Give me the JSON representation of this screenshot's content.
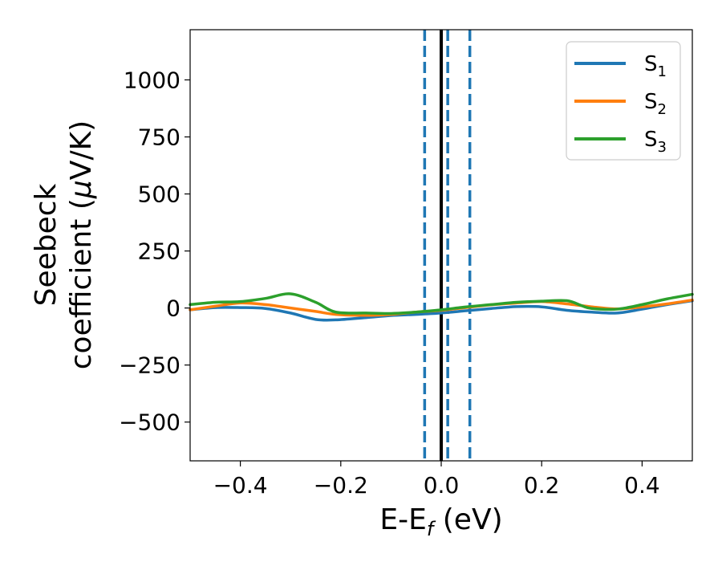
{
  "chart_data": {
    "type": "line",
    "xlabel": {
      "main": "E-E",
      "sub": "f",
      "units": " (eV)"
    },
    "ylabel": {
      "line1": "Seebeck",
      "line2": "coefficient  (",
      "mu": "μ",
      "unit": "V/K)"
    },
    "xlim": [
      -0.5,
      0.5
    ],
    "ylim": [
      -670,
      1220
    ],
    "x_ticks": [
      -0.4,
      -0.2,
      0.0,
      0.2,
      0.4
    ],
    "x_tick_labels": [
      "−0.4",
      "−0.2",
      "0.0",
      "0.2",
      "0.4"
    ],
    "y_ticks": [
      -500,
      -250,
      0,
      250,
      500,
      750,
      1000
    ],
    "y_tick_labels": [
      "−500",
      "−250",
      "0",
      "250",
      "500",
      "750",
      "1000"
    ],
    "grid": false,
    "legend_position": "top-right",
    "series": [
      {
        "name": "S",
        "name_sub": "1",
        "color": "#1f77b4",
        "x": [
          -0.5,
          -0.45,
          -0.4,
          -0.35,
          -0.3,
          -0.25,
          -0.21,
          -0.15,
          -0.1,
          -0.05,
          0.0,
          0.05,
          0.1,
          0.15,
          0.2,
          0.25,
          0.3,
          0.35,
          0.4,
          0.45,
          0.5
        ],
        "y": [
          -8,
          2,
          2,
          -2,
          -22,
          -50,
          -52,
          -42,
          -33,
          -28,
          -22,
          -12,
          -2,
          6,
          5,
          -10,
          -18,
          -22,
          -5,
          15,
          32
        ]
      },
      {
        "name": "S",
        "name_sub": "2",
        "color": "#ff7f0e",
        "x": [
          -0.5,
          -0.45,
          -0.4,
          -0.35,
          -0.3,
          -0.25,
          -0.21,
          -0.15,
          -0.1,
          -0.05,
          0.0,
          0.05,
          0.1,
          0.15,
          0.2,
          0.25,
          0.3,
          0.35,
          0.4,
          0.45,
          0.5
        ],
        "y": [
          -8,
          8,
          22,
          15,
          0,
          -15,
          -28,
          -32,
          -28,
          -18,
          -10,
          2,
          14,
          22,
          28,
          18,
          5,
          -4,
          5,
          18,
          35
        ]
      },
      {
        "name": "S",
        "name_sub": "3",
        "color": "#2ca02c",
        "x": [
          -0.5,
          -0.45,
          -0.4,
          -0.35,
          -0.3,
          -0.25,
          -0.21,
          -0.15,
          -0.1,
          -0.05,
          0.0,
          0.05,
          0.1,
          0.15,
          0.2,
          0.25,
          0.28,
          0.3,
          0.35,
          0.4,
          0.45,
          0.5
        ],
        "y": [
          15,
          25,
          28,
          42,
          62,
          25,
          -18,
          -22,
          -24,
          -18,
          -8,
          5,
          15,
          25,
          30,
          32,
          10,
          -2,
          -5,
          15,
          40,
          60
        ]
      }
    ],
    "vertical_lines": [
      {
        "x": -0.033,
        "color": "#1f77b4",
        "style": "dashed"
      },
      {
        "x": 0.0,
        "color": "#000000",
        "style": "solid"
      },
      {
        "x": 0.013,
        "color": "#1f77b4",
        "style": "dashed"
      },
      {
        "x": 0.057,
        "color": "#1f77b4",
        "style": "dashed"
      }
    ]
  }
}
